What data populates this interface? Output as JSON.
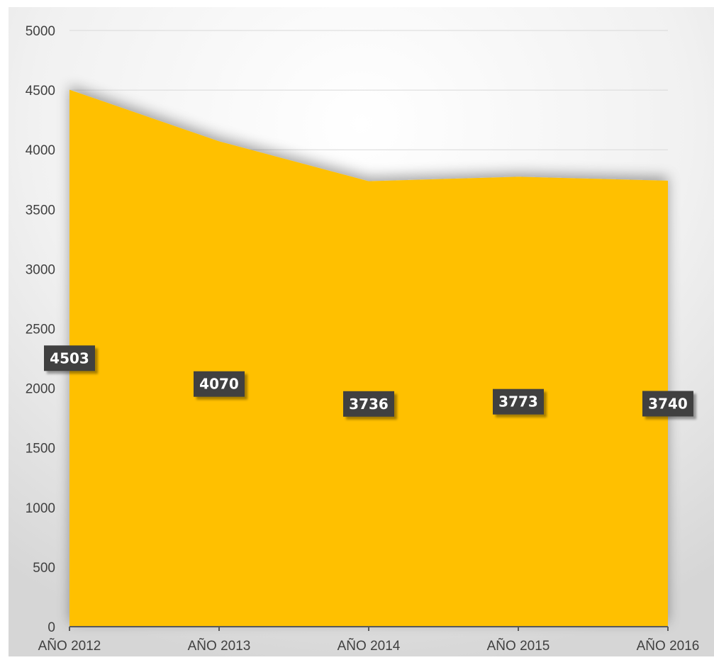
{
  "chart_data": {
    "type": "area",
    "categories": [
      "AÑO 2012",
      "AÑO 2013",
      "AÑO 2014",
      "AÑO 2015",
      "AÑO 2016"
    ],
    "series": [
      {
        "values": [
          4503,
          4070,
          3736,
          3773,
          3740
        ]
      }
    ],
    "data_labels": [
      "4503",
      "4070",
      "3736",
      "3773",
      "3740"
    ],
    "ylim": [
      0,
      5000
    ],
    "yticks": [
      0,
      500,
      1000,
      1500,
      2000,
      2500,
      3000,
      3500,
      4000,
      4500,
      5000
    ],
    "ytick_labels": [
      "0",
      "500",
      "1000",
      "1500",
      "2000",
      "2500",
      "3000",
      "3500",
      "4000",
      "4500",
      "5000"
    ],
    "title": "",
    "xlabel": "",
    "ylabel": "",
    "grid": true,
    "legend": "none",
    "colors": {
      "area": "#FFC000",
      "label_bg": "#404040",
      "label_text": "#FFFFFF",
      "axis_text": "#404040"
    }
  }
}
